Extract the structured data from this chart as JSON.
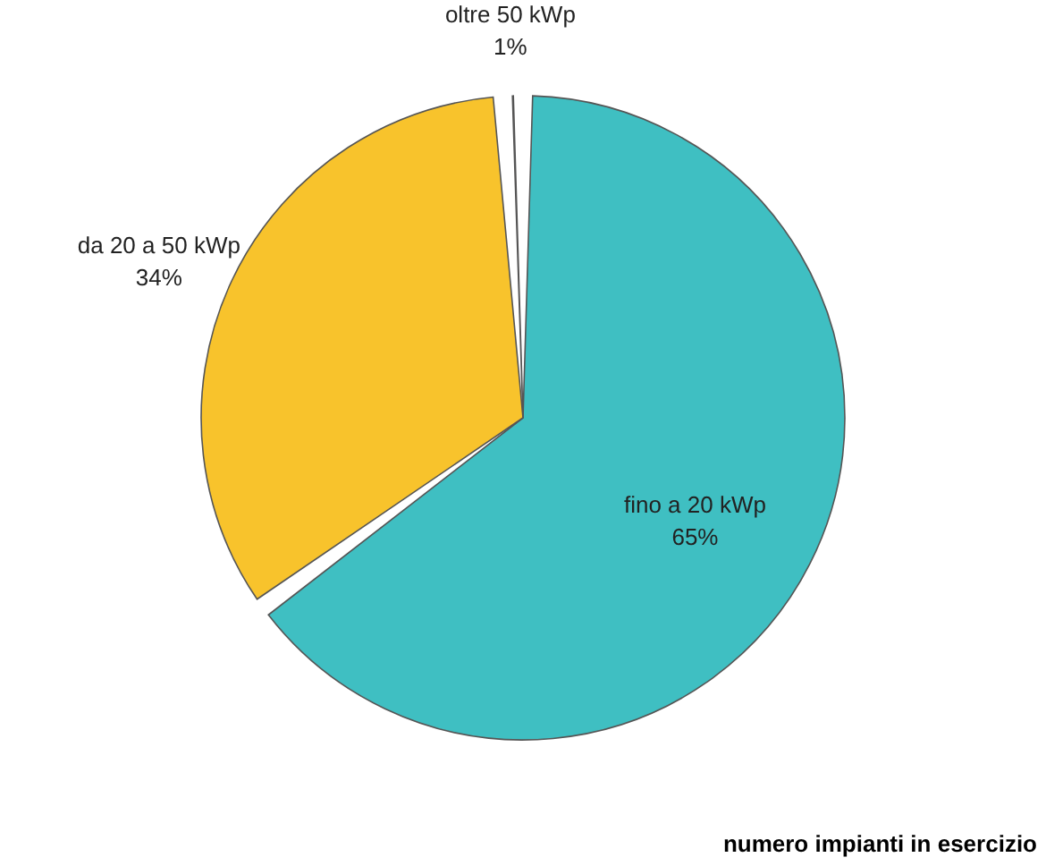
{
  "chart_data": {
    "type": "pie",
    "title": "numero impianti in esercizio",
    "categories": [
      "fino a 20 kWp",
      "da 20 a 50 kWp",
      "oltre 50 kWp"
    ],
    "values": [
      65,
      34,
      1
    ],
    "value_labels": [
      "65%",
      "34%",
      "1%"
    ],
    "colors": [
      "#3fbfc2",
      "#f8c32c",
      "#e2231f"
    ],
    "legend": false
  }
}
